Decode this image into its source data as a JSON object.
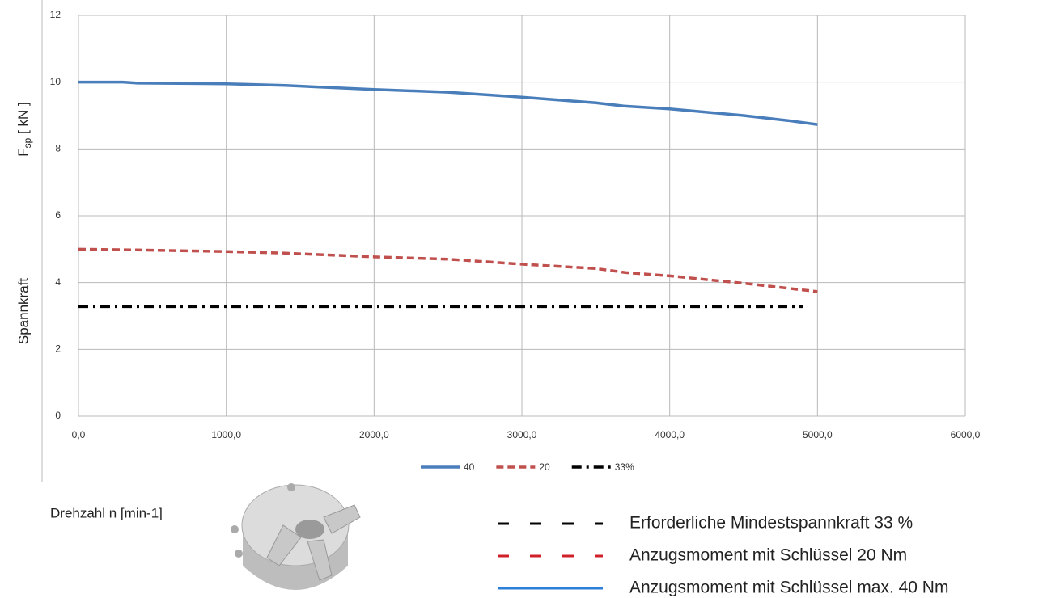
{
  "chart_data": {
    "type": "line",
    "ylabel": {
      "symbol": "F",
      "subscript": "sp",
      "unit": "[ kN ]"
    },
    "ylabel2": "Spannkraft",
    "xlabel": "Drehzahl n [min-1]",
    "xlim": [
      0,
      6000
    ],
    "ylim": [
      0,
      12
    ],
    "xticks": [
      {
        "value": 0,
        "label": "0,0"
      },
      {
        "value": 1000,
        "label": "1000,0"
      },
      {
        "value": 2000,
        "label": "2000,0"
      },
      {
        "value": 3000,
        "label": "3000,0"
      },
      {
        "value": 4000,
        "label": "4000,0"
      },
      {
        "value": 5000,
        "label": "5000,0"
      },
      {
        "value": 6000,
        "label": "6000,0"
      }
    ],
    "yticks": [
      0,
      2,
      4,
      6,
      8,
      10,
      12
    ],
    "grid": true,
    "series": [
      {
        "name": "40",
        "color": "#4a7ebb",
        "dash": "solid",
        "x": [
          0,
          300,
          400,
          1000,
          1400,
          2000,
          2500,
          3000,
          3500,
          3700,
          4000,
          4500,
          4800,
          5000
        ],
        "values": [
          10.0,
          10.0,
          9.97,
          9.95,
          9.9,
          9.78,
          9.7,
          9.55,
          9.38,
          9.28,
          9.2,
          9.0,
          8.85,
          8.73
        ]
      },
      {
        "name": "20",
        "color": "#c0504d",
        "dash": "dashed",
        "x": [
          0,
          500,
          1000,
          1400,
          2000,
          2500,
          3000,
          3500,
          3700,
          4000,
          4500,
          5000
        ],
        "values": [
          5.0,
          4.97,
          4.93,
          4.88,
          4.77,
          4.7,
          4.55,
          4.42,
          4.3,
          4.2,
          3.98,
          3.73
        ]
      },
      {
        "name": "33%",
        "color": "#000000",
        "dash": "dashdot",
        "x": [
          0,
          4900
        ],
        "values": [
          3.28,
          3.28
        ]
      }
    ],
    "annotations": [
      {
        "text": "Erforderliche Mindestspannkraft 33 %",
        "color": "#000000",
        "dash": "dashed"
      },
      {
        "text": "Anzugsmoment mit Schlüssel 20 Nm",
        "color": "#d0202a",
        "dash": "dashed"
      },
      {
        "text": "Anzugsmoment mit Schlüssel max. 40 Nm",
        "color": "#2e7fd8",
        "dash": "solid"
      }
    ]
  }
}
